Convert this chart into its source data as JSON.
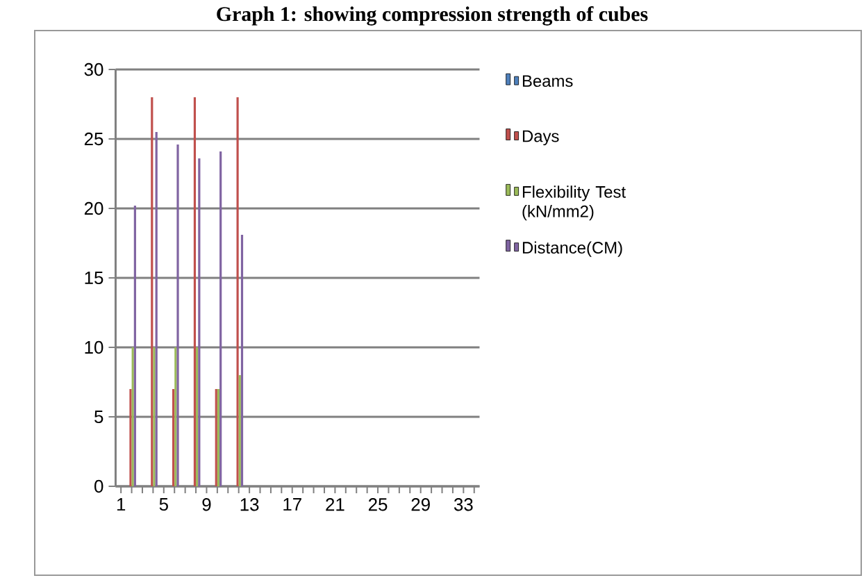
{
  "chart_data": {
    "type": "bar",
    "title": "Graph 1: showing compression strength of cubes",
    "categories": [
      "1",
      null,
      null,
      null,
      "5",
      null,
      null,
      null,
      "9",
      null,
      null,
      null,
      "13",
      null,
      null,
      null,
      "17",
      null,
      null,
      null,
      "21",
      null,
      null,
      null,
      "25",
      null,
      null,
      null,
      "29",
      null,
      null,
      null,
      "33",
      null
    ],
    "series": [
      {
        "name": "Beams",
        "color": "#4f81bd",
        "values": [
          null,
          null,
          null,
          null,
          null,
          null,
          null,
          null,
          null,
          null,
          null,
          null,
          null,
          null,
          null,
          null,
          null,
          null,
          null,
          null,
          null,
          null,
          null,
          null,
          null,
          null,
          null,
          null,
          null,
          null,
          null,
          null,
          null,
          null
        ]
      },
      {
        "name": "Days",
        "color": "#c0504d",
        "values": [
          null,
          7,
          null,
          28,
          null,
          7,
          null,
          28,
          null,
          7,
          null,
          28,
          null,
          null,
          null,
          null,
          null,
          null,
          null,
          null,
          null,
          null,
          null,
          null,
          null,
          null,
          null,
          null,
          null,
          null,
          null,
          null,
          null,
          null
        ]
      },
      {
        "name": "Flexibility Test (kN/mm2)",
        "color": "#9bbb59",
        "values": [
          null,
          10,
          null,
          10,
          null,
          10,
          null,
          10,
          null,
          7,
          null,
          8,
          null,
          null,
          null,
          null,
          null,
          null,
          null,
          null,
          null,
          null,
          null,
          null,
          null,
          null,
          null,
          null,
          null,
          null,
          null,
          null,
          null,
          null
        ]
      },
      {
        "name": "Distance(CM)",
        "color": "#8064a2",
        "values": [
          null,
          20.2,
          null,
          25.5,
          null,
          24.6,
          null,
          23.6,
          null,
          24.1,
          null,
          18.1,
          null,
          null,
          null,
          null,
          null,
          null,
          null,
          null,
          null,
          null,
          null,
          null,
          null,
          null,
          null,
          null,
          null,
          null,
          null,
          null,
          null,
          null
        ]
      }
    ],
    "ylim": [
      0,
      30
    ],
    "yticks": [
      0,
      5,
      10,
      15,
      20,
      25,
      30
    ],
    "grid": "y",
    "legend": "right"
  }
}
